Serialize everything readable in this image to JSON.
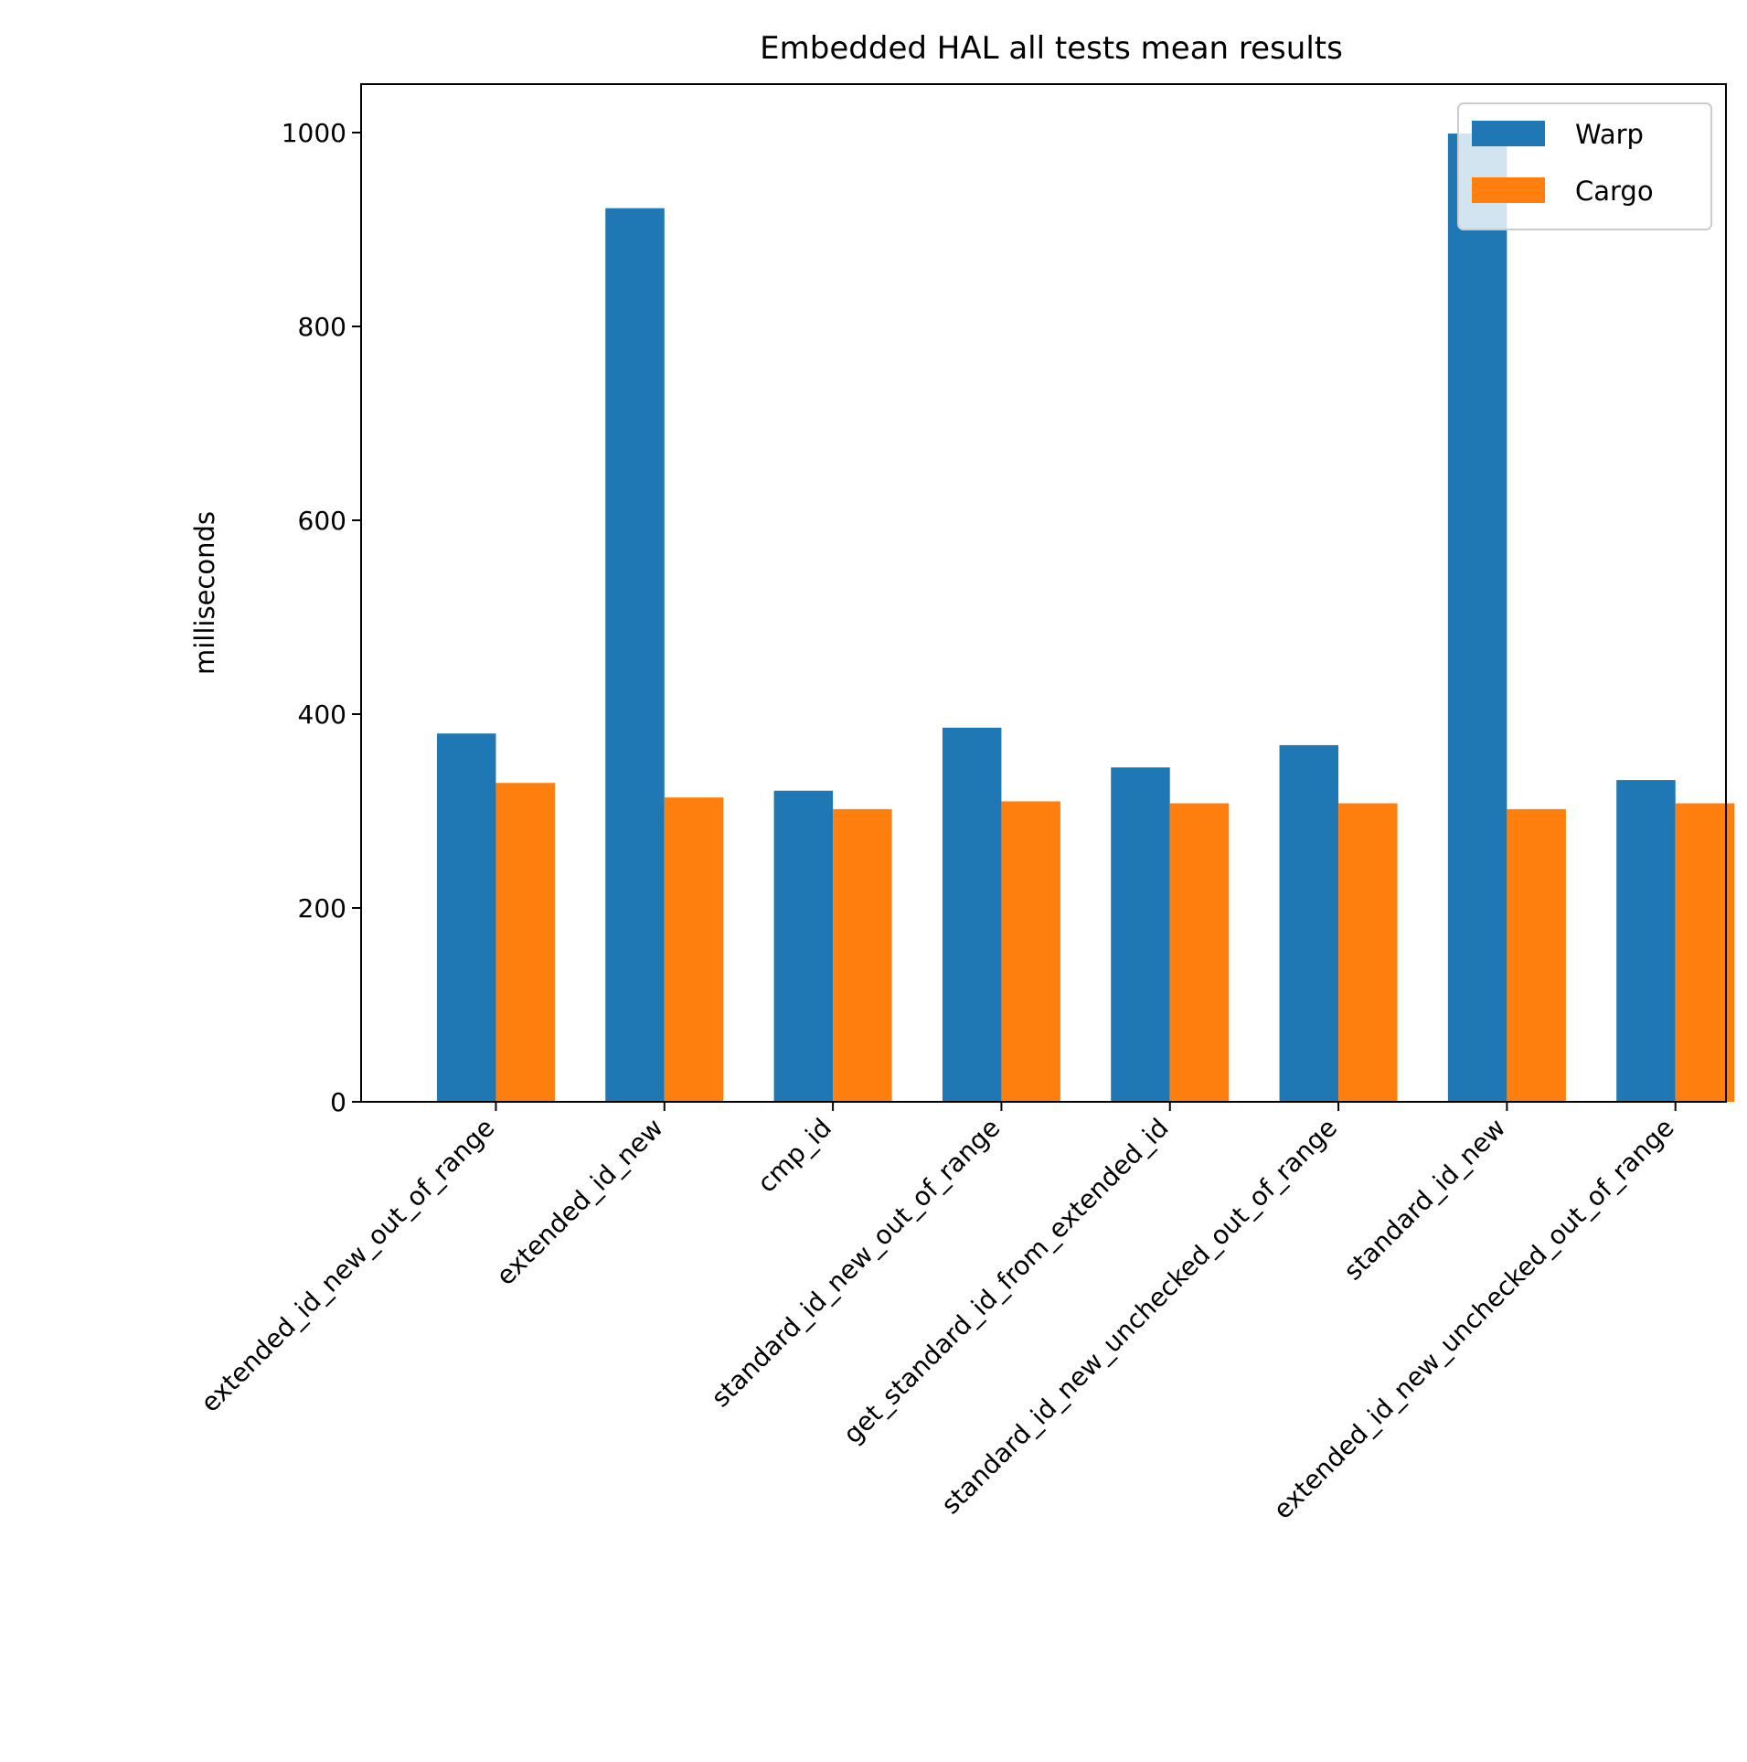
{
  "chart_data": {
    "type": "bar",
    "title": "Embedded HAL all tests mean results",
    "xlabel": "",
    "ylabel": "milliseconds",
    "ylim": [
      0,
      1050
    ],
    "yticks": [
      0,
      200,
      400,
      600,
      800,
      1000
    ],
    "ytick_labels": [
      "0",
      "200",
      "400",
      "600",
      "800",
      "1000"
    ],
    "categories": [
      "extended_id_new_out_of_range",
      "extended_id_new",
      "cmp_id",
      "standard_id_new_out_of_range",
      "get_standard_id_from_extended_id",
      "standard_id_new_unchecked_out_of_range",
      "standard_id_new",
      "extended_id_new_unchecked_out_of_range"
    ],
    "series": [
      {
        "name": "Warp",
        "color": "#1f77b4",
        "values": [
          380,
          922,
          321,
          386,
          345,
          368,
          999,
          332
        ]
      },
      {
        "name": "Cargo",
        "color": "#ff7f0e",
        "values": [
          329,
          314,
          302,
          310,
          308,
          308,
          302,
          308
        ]
      }
    ],
    "legend": "top-right",
    "grid": false
  }
}
